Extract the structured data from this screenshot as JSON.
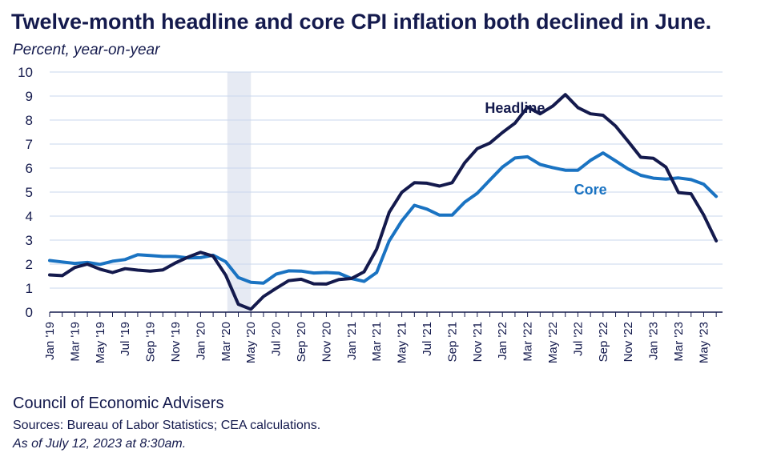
{
  "title": "Twelve-month headline and core CPI inflation both declined in June.",
  "subtitle": "Percent, year-on-year",
  "footer": {
    "org": "Council of Economic Advisers",
    "sources": "Sources: Bureau of Labor Statistics; CEA calculations.",
    "asof": "As of July 12, 2023 at 8:30am."
  },
  "colors": {
    "headline": "#141a4d",
    "core": "#1a73c2",
    "shade": "#e6eaf3",
    "grid": "#c9d7ec",
    "axis": "#141a4d"
  },
  "chart_data": {
    "type": "line",
    "title": "Twelve-month headline and core CPI inflation both declined in June.",
    "ylabel": "Percent, year-on-year",
    "ylim": [
      0,
      10
    ],
    "yticks": [
      0,
      1,
      2,
      3,
      4,
      5,
      6,
      7,
      8,
      9,
      10
    ],
    "grid": true,
    "x_start": "2019-01",
    "x_end": "2023-06",
    "x_tick_labels": [
      "Jan '19",
      "Mar '19",
      "May '19",
      "Jul '19",
      "Sep '19",
      "Nov '19",
      "Jan '20",
      "Mar '20",
      "May '20",
      "Jul '20",
      "Sep '20",
      "Nov '20",
      "Jan '21",
      "Mar '21",
      "May '21",
      "Jul '21",
      "Sep '21",
      "Nov '21",
      "Jan '22",
      "Mar '22",
      "May '22",
      "Jul '22",
      "Sep '22",
      "Nov '22",
      "Jan '23",
      "Mar '23",
      "May '23"
    ],
    "shaded_region": [
      "2020-03",
      "2020-04"
    ],
    "annotations": [
      {
        "text": "Headline",
        "series": "Headline"
      },
      {
        "text": "Core",
        "series": "Core"
      }
    ],
    "series": [
      {
        "name": "Headline",
        "values": [
          1.55,
          1.52,
          1.86,
          2.0,
          1.79,
          1.65,
          1.81,
          1.75,
          1.71,
          1.76,
          2.05,
          2.29,
          2.49,
          2.33,
          1.54,
          0.33,
          0.12,
          0.65,
          0.99,
          1.31,
          1.37,
          1.18,
          1.17,
          1.36,
          1.4,
          1.68,
          2.62,
          4.16,
          4.99,
          5.39,
          5.37,
          5.25,
          5.39,
          6.22,
          6.81,
          7.04,
          7.48,
          7.87,
          8.54,
          8.26,
          8.58,
          9.06,
          8.52,
          8.26,
          8.2,
          7.75,
          7.11,
          6.45,
          6.41,
          6.04,
          4.98,
          4.93,
          4.05,
          2.97
        ]
      },
      {
        "name": "Core",
        "values": [
          2.15,
          2.09,
          2.03,
          2.07,
          1.99,
          2.12,
          2.19,
          2.39,
          2.36,
          2.32,
          2.32,
          2.26,
          2.27,
          2.37,
          2.1,
          1.44,
          1.24,
          1.21,
          1.58,
          1.72,
          1.71,
          1.63,
          1.65,
          1.62,
          1.4,
          1.28,
          1.65,
          2.97,
          3.8,
          4.45,
          4.29,
          4.04,
          4.04,
          4.58,
          4.95,
          5.5,
          6.04,
          6.42,
          6.47,
          6.15,
          6.02,
          5.91,
          5.91,
          6.32,
          6.63,
          6.3,
          5.96,
          5.7,
          5.58,
          5.54,
          5.59,
          5.52,
          5.33,
          4.82
        ]
      }
    ]
  }
}
